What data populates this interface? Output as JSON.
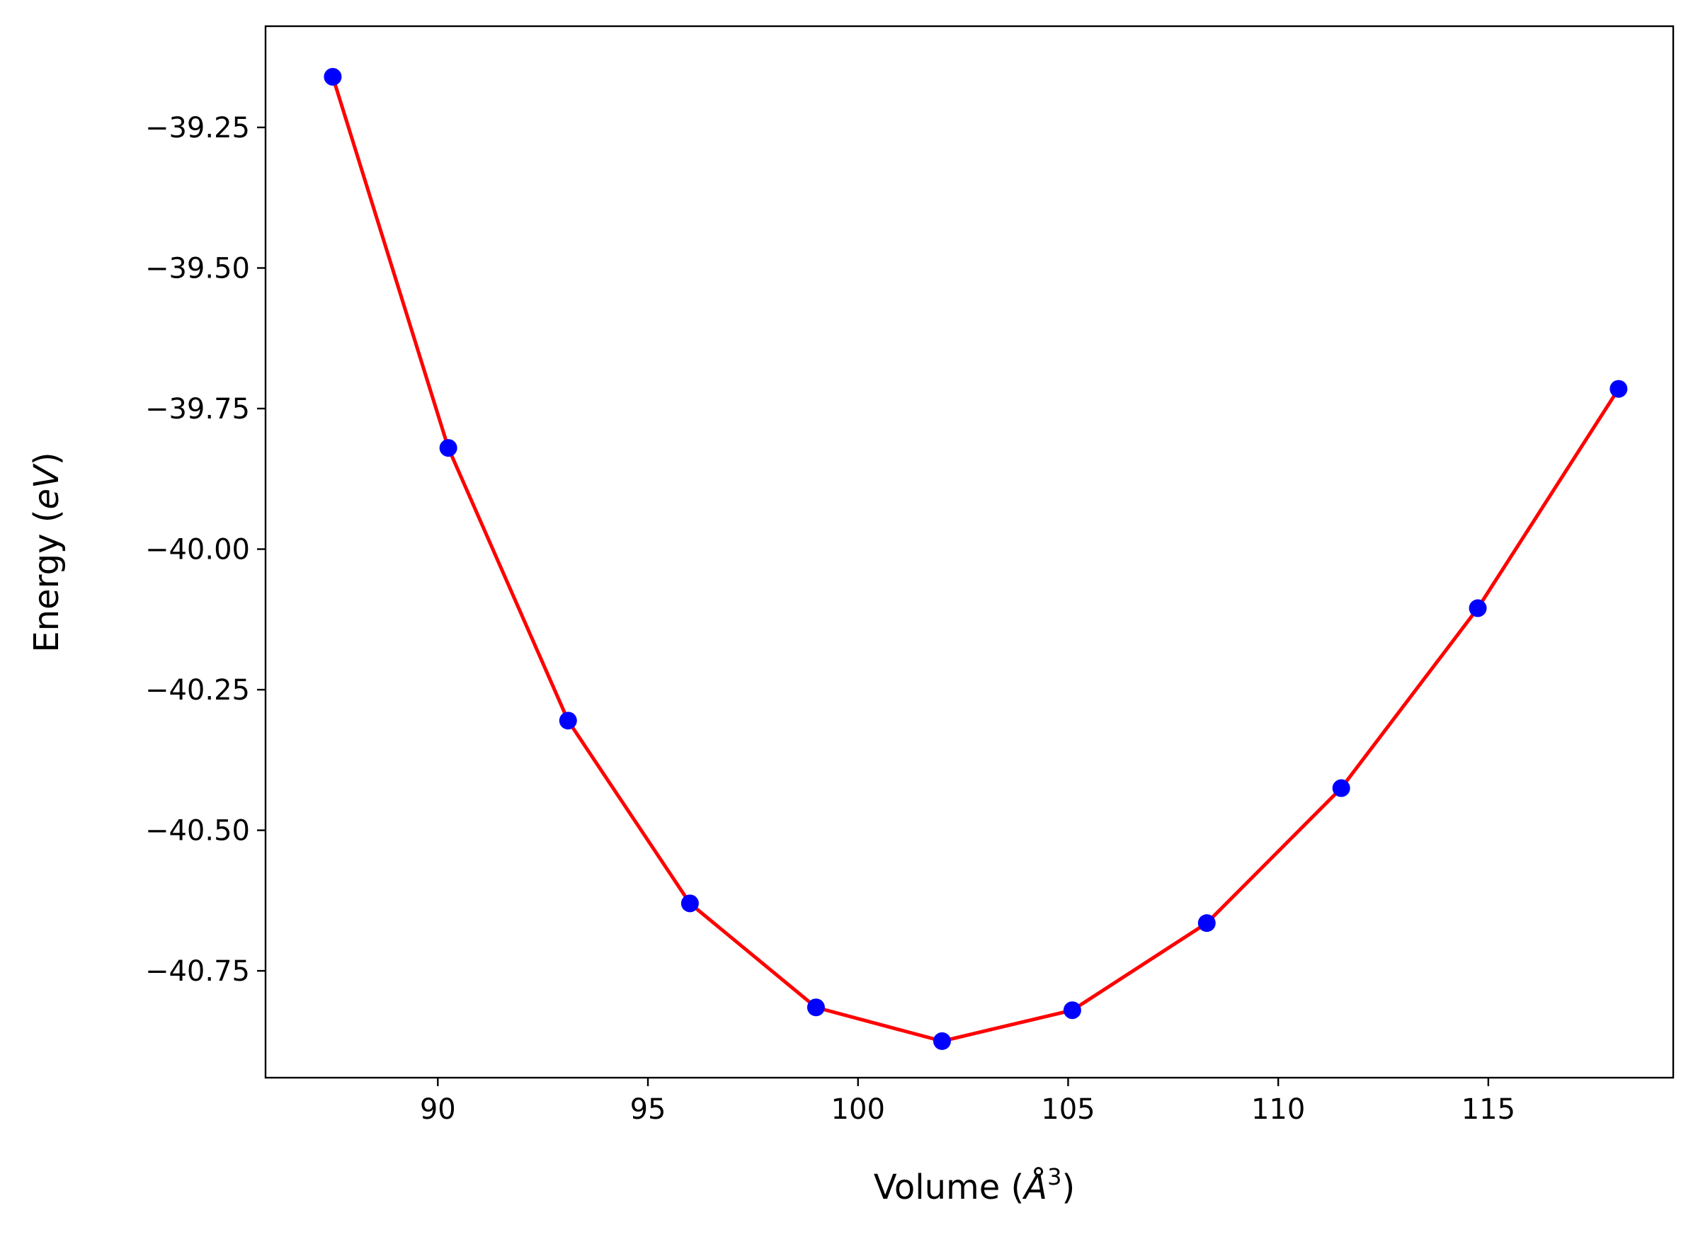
{
  "chart_data": {
    "type": "line",
    "xlabel": "Volume",
    "xlabel_unit": "Å",
    "xlabel_exponent": "3",
    "ylabel": "Energy",
    "ylabel_unit": "eV",
    "xlim": [
      85.9,
      119.4
    ],
    "ylim": [
      -40.94,
      -39.07
    ],
    "x_ticks": [
      90,
      95,
      100,
      105,
      110,
      115
    ],
    "x_tick_labels": [
      "90",
      "95",
      "100",
      "105",
      "110",
      "115"
    ],
    "y_ticks": [
      -39.25,
      -39.5,
      -39.75,
      -40.0,
      -40.25,
      -40.5,
      -40.75
    ],
    "y_tick_labels": [
      "−39.25",
      "−39.50",
      "−39.75",
      "−40.00",
      "−40.25",
      "−40.50",
      "−40.75"
    ],
    "grid": false,
    "series": [
      {
        "kind": "scatter",
        "color": "#0000ff",
        "x": [
          87.5,
          90.25,
          93.1,
          96.0,
          99.0,
          102.0,
          105.1,
          108.3,
          111.5,
          114.75,
          118.1
        ],
        "y": [
          -39.16,
          -39.82,
          -40.305,
          -40.63,
          -40.815,
          -40.875,
          -40.82,
          -40.665,
          -40.425,
          -40.105,
          -39.715
        ]
      },
      {
        "kind": "line",
        "color": "#ff0000",
        "x": [
          87.5,
          90.25,
          93.1,
          96.0,
          99.0,
          102.0,
          105.1,
          108.3,
          111.5,
          114.75,
          118.1
        ],
        "y": [
          -39.16,
          -39.82,
          -40.305,
          -40.63,
          -40.815,
          -40.875,
          -40.82,
          -40.665,
          -40.425,
          -40.105,
          -39.715
        ]
      }
    ]
  }
}
